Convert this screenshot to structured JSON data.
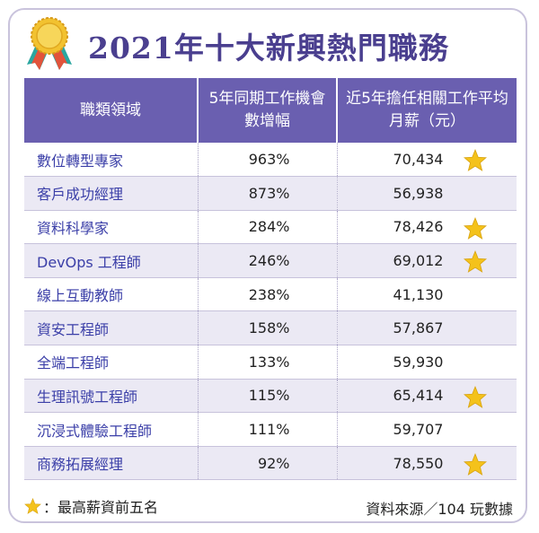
{
  "title": "2021年十大新興熱門職務",
  "table": {
    "headers": [
      "職類領域",
      "5年同期工作機會數增幅",
      "近5年擔任相關工作平均月薪（元）"
    ],
    "rows": [
      {
        "role": "數位轉型專家",
        "growth": "963%",
        "salary": "70,434",
        "star": true
      },
      {
        "role": "客戶成功經理",
        "growth": "873%",
        "salary": "56,938",
        "star": false
      },
      {
        "role": "資料科學家",
        "growth": "284%",
        "salary": "78,426",
        "star": true
      },
      {
        "role": "DevOps 工程師",
        "growth": "246%",
        "salary": "69,012",
        "star": true
      },
      {
        "role": "線上互動教師",
        "growth": "238%",
        "salary": "41,130",
        "star": false
      },
      {
        "role": "資安工程師",
        "growth": "158%",
        "salary": "57,867",
        "star": false
      },
      {
        "role": "全端工程師",
        "growth": "133%",
        "salary": "59,930",
        "star": false
      },
      {
        "role": "生理訊號工程師",
        "growth": "115%",
        "salary": "65,414",
        "star": true
      },
      {
        "role": "沉浸式體驗工程師",
        "growth": "111%",
        "salary": "59,707",
        "star": false
      },
      {
        "role": "商務拓展經理",
        "growth": "92%",
        "salary": "78,550",
        "star": true
      }
    ]
  },
  "footer": {
    "legend_text": "：最高薪資前五名",
    "source": "資料來源／104 玩數據"
  },
  "colors": {
    "title": "#4a3f8f",
    "header_bg": "#6a5fb0",
    "role_text": "#3b3fa8",
    "stripe": "#ebe9f4",
    "star": "#f4c21b"
  },
  "icons": {
    "medal": "award-medal-icon",
    "star": "star-icon"
  }
}
